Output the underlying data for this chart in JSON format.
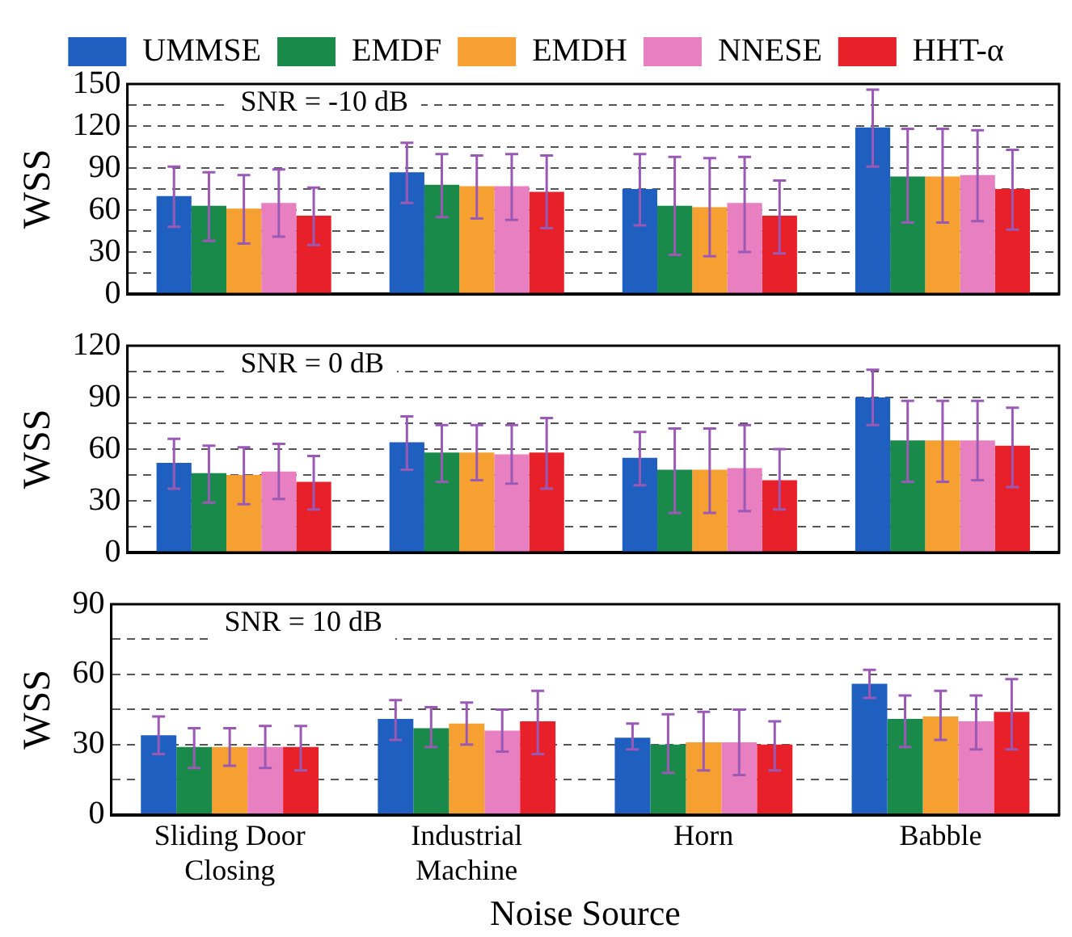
{
  "chart_data": [
    {
      "type": "bar",
      "ylabel": "WSS",
      "annotations": [
        "SNR = -10 dB"
      ],
      "categories": [
        null,
        null,
        null,
        null
      ],
      "legend": "top",
      "grid": "y",
      "tick_labels": "y",
      "ylim": [
        0,
        150
      ],
      "yticks": [
        0,
        {
          "value": 15,
          "label": null
        },
        30,
        {
          "value": 45,
          "label": null
        },
        60,
        {
          "value": 75,
          "label": null
        },
        90,
        {
          "value": 105,
          "label": null
        },
        120,
        {
          "value": 135,
          "label": null
        },
        150
      ],
      "series": [
        {
          "name": "UMMSE",
          "color": "#1f5fbf",
          "values": [
            70,
            87,
            75,
            119
          ],
          "errors": [
            [
              48,
              91
            ],
            [
              65,
              108
            ],
            [
              49,
              100
            ],
            [
              91,
              146
            ]
          ]
        },
        {
          "name": "EMDF",
          "color": "#1a8a4a",
          "values": [
            63,
            78,
            63,
            84
          ],
          "errors": [
            [
              38,
              87
            ],
            [
              55,
              100
            ],
            [
              28,
              98
            ],
            [
              51,
              118
            ]
          ]
        },
        {
          "name": "EMDH",
          "color": "#f5a030",
          "values": [
            61,
            77,
            62,
            84
          ],
          "errors": [
            [
              36,
              85
            ],
            [
              54,
              99
            ],
            [
              27,
              97
            ],
            [
              51,
              118
            ]
          ]
        },
        {
          "name": "NNESE",
          "color": "#e87fc0",
          "values": [
            65,
            77,
            65,
            85
          ],
          "errors": [
            [
              41,
              89
            ],
            [
              53,
              100
            ],
            [
              30,
              98
            ],
            [
              52,
              117
            ]
          ]
        },
        {
          "name": "HHT-α",
          "color": "#e8202a",
          "values": [
            56,
            73,
            56,
            75
          ],
          "errors": [
            [
              35,
              76
            ],
            [
              47,
              99
            ],
            [
              29,
              81
            ],
            [
              46,
              103
            ]
          ]
        }
      ]
    },
    {
      "type": "bar",
      "ylabel": "WSS",
      "annotations": [
        "SNR = 0 dB"
      ],
      "categories": [
        null,
        null,
        null,
        null
      ],
      "grid": "y",
      "tick_labels": "y",
      "ylim": [
        0,
        120
      ],
      "yticks": [
        0,
        {
          "value": 15,
          "label": null
        },
        30,
        {
          "value": 45,
          "label": null
        },
        60,
        {
          "value": 75,
          "label": null
        },
        90,
        {
          "value": 105,
          "label": null
        },
        120
      ],
      "series": [
        {
          "color": "#1f5fbf",
          "values": [
            52,
            64,
            55,
            90
          ],
          "errors": [
            [
              37,
              66
            ],
            [
              48,
              79
            ],
            [
              39,
              70
            ],
            [
              74,
              106
            ]
          ]
        },
        {
          "color": "#1a8a4a",
          "values": [
            46,
            58,
            48,
            65
          ],
          "errors": [
            [
              29,
              62
            ],
            [
              41,
              74
            ],
            [
              23,
              72
            ],
            [
              41,
              88
            ]
          ]
        },
        {
          "color": "#f5a030",
          "values": [
            45,
            58,
            48,
            65
          ],
          "errors": [
            [
              28,
              61
            ],
            [
              42,
              74
            ],
            [
              23,
              72
            ],
            [
              41,
              88
            ]
          ]
        },
        {
          "color": "#e87fc0",
          "values": [
            47,
            57,
            49,
            65
          ],
          "errors": [
            [
              31,
              63
            ],
            [
              40,
              74
            ],
            [
              24,
              74
            ],
            [
              42,
              88
            ]
          ]
        },
        {
          "color": "#e8202a",
          "values": [
            41,
            58,
            42,
            62
          ],
          "errors": [
            [
              25,
              56
            ],
            [
              37,
              78
            ],
            [
              25,
              60
            ],
            [
              38,
              84
            ]
          ]
        }
      ]
    },
    {
      "type": "bar",
      "ylabel": "WSS",
      "xlabel": "Noise Source",
      "annotations": [
        "SNR = 10 dB"
      ],
      "categories": [
        "Sliding Door Closing",
        "Industrial Machine",
        "Horn",
        "Babble"
      ],
      "grid": "y",
      "ylim": [
        0,
        90
      ],
      "yticks": [
        0,
        {
          "value": 15,
          "label": null
        },
        30,
        {
          "value": 45,
          "label": null
        },
        60,
        {
          "value": 75,
          "label": null
        },
        90
      ],
      "series": [
        {
          "color": "#1f5fbf",
          "values": [
            34,
            41,
            33,
            56
          ],
          "errors": [
            [
              26,
              42
            ],
            [
              32,
              49
            ],
            [
              28,
              39
            ],
            [
              50,
              62
            ]
          ]
        },
        {
          "color": "#1a8a4a",
          "values": [
            29,
            37,
            30,
            41
          ],
          "errors": [
            [
              20,
              37
            ],
            [
              29,
              46
            ],
            [
              18,
              43
            ],
            [
              29,
              51
            ]
          ]
        },
        {
          "color": "#f5a030",
          "values": [
            29,
            39,
            31,
            42
          ],
          "errors": [
            [
              21,
              37
            ],
            [
              30,
              48
            ],
            [
              19,
              44
            ],
            [
              32,
              53
            ]
          ]
        },
        {
          "color": "#e87fc0",
          "values": [
            29,
            36,
            31,
            40
          ],
          "errors": [
            [
              20,
              38
            ],
            [
              27,
              45
            ],
            [
              17,
              45
            ],
            [
              28,
              51
            ]
          ]
        },
        {
          "color": "#e8202a",
          "values": [
            29,
            40,
            30,
            44
          ],
          "errors": [
            [
              19,
              38
            ],
            [
              26,
              53
            ],
            [
              19,
              40
            ],
            [
              28,
              58
            ]
          ]
        }
      ]
    }
  ]
}
